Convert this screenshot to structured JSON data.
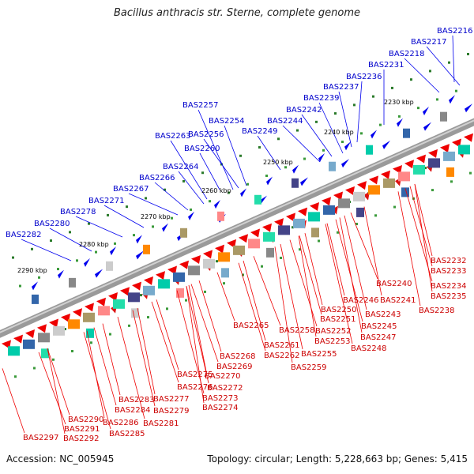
{
  "title": "Bacillus anthracis str. Sterne, complete genome",
  "footer": {
    "accession": "Accession: NC_005945",
    "topology": "Topology: circular; Length: 5,228,663 bp; Genes: 5,415"
  },
  "kbp_ticks": [
    "2230 kbp",
    "2240 kbp",
    "2250 kbp",
    "2260 kbp",
    "2270 kbp",
    "2280 kbp",
    "2290 kbp"
  ],
  "upper_labels": [
    "BAS2216",
    "BAS2217",
    "BAS2218",
    "BAS2231",
    "BAS2236",
    "BAS2237",
    "BAS2239",
    "BAS2242",
    "BAS2244",
    "BAS2249",
    "BAS2254",
    "BAS2256",
    "BAS2257",
    "BAS2260",
    "BAS2263",
    "BAS2264",
    "BAS2266",
    "BAS2267",
    "BAS2271",
    "BAS2278",
    "BAS2280",
    "BAS2282"
  ],
  "lower_labels": [
    "BAS2232",
    "BAS2233",
    "BAS2234",
    "BAS2235",
    "BAS2238",
    "BAS2240",
    "BAS2241",
    "BAS2243",
    "BAS2245",
    "BAS2246",
    "BAS2247",
    "BAS2248",
    "BAS2250",
    "BAS2251",
    "BAS2252",
    "BAS2253",
    "BAS2255",
    "BAS2258",
    "BAS2259",
    "BAS2261",
    "BAS2262",
    "BAS2265",
    "BAS2268",
    "BAS2269",
    "BAS2270",
    "BAS2272",
    "BAS2273",
    "BAS2274",
    "BAS2275",
    "BAS2276",
    "BAS2277",
    "BAS2279",
    "BAS2281",
    "BAS2283",
    "BAS2284",
    "BAS2285",
    "BAS2286",
    "BAS2290",
    "BAS2291",
    "BAS2292",
    "BAS2297"
  ],
  "colors": {
    "forward": "#0000ee",
    "reverse": "#ee0000",
    "backbone": "#888888",
    "dots": "#228822"
  }
}
